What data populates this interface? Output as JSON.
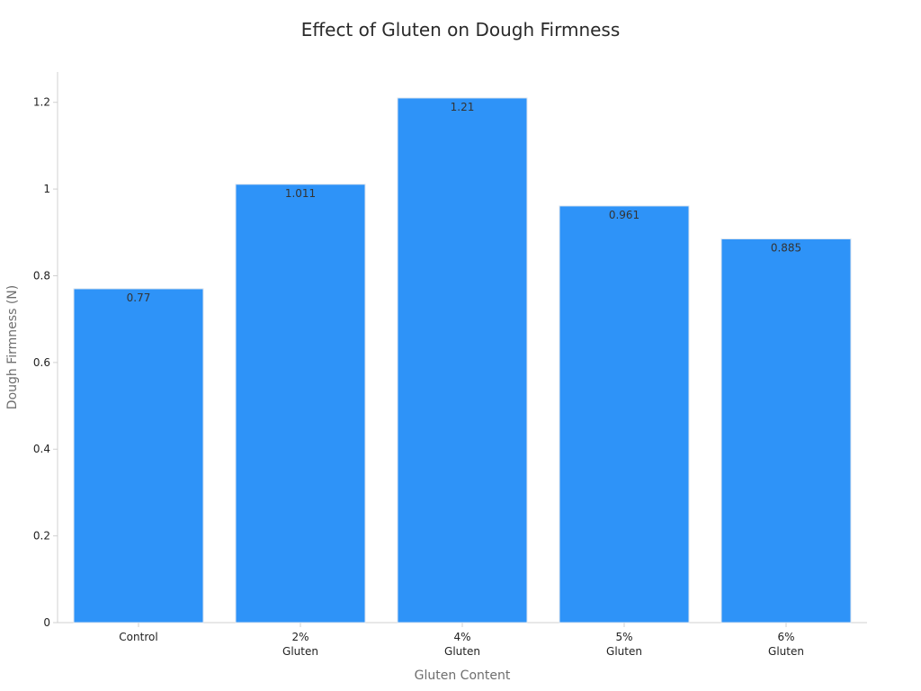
{
  "chart_data": {
    "type": "bar",
    "title": "Effect of Gluten on Dough Firmness",
    "xlabel": "Gluten Content",
    "ylabel": "Dough Firmness (N)",
    "categories": [
      "Control",
      "2% Gluten",
      "4% Gluten",
      "5% Gluten",
      "6% Gluten"
    ],
    "category_lines": [
      [
        "Control"
      ],
      [
        "2%",
        "Gluten"
      ],
      [
        "4%",
        "Gluten"
      ],
      [
        "5%",
        "Gluten"
      ],
      [
        "6%",
        "Gluten"
      ]
    ],
    "values": [
      0.77,
      1.011,
      1.21,
      0.961,
      0.885
    ],
    "data_labels": [
      "0.77",
      "1.011",
      "1.21",
      "0.961",
      "0.885"
    ],
    "y_ticks": [
      0,
      0.2,
      0.4,
      0.6,
      0.8,
      1,
      1.2
    ],
    "y_tick_labels": [
      "0",
      "0.2",
      "0.4",
      "0.6",
      "0.8",
      "1",
      "1.2"
    ],
    "ylim": [
      0,
      1.27
    ],
    "grid": false,
    "legend": "none",
    "bar_color": "#2e93f8",
    "bar_edge_color": "#dde6ef"
  }
}
